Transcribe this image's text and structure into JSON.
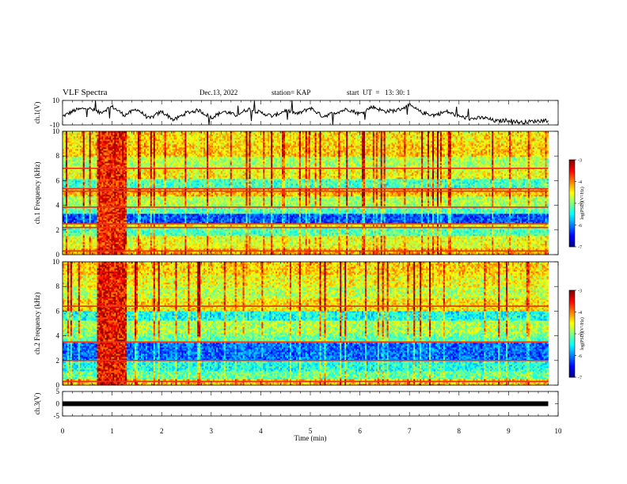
{
  "header": {
    "title": "VLF Spectra",
    "date": "Dec.13, 2022",
    "station": "station= KAP",
    "start": "start  UT  =   13: 30: 1"
  },
  "chart_data": [
    {
      "type": "line",
      "panel": "ch1-waveform",
      "ylabel": "ch.1(V)",
      "ylim": [
        -10,
        10
      ],
      "yticks": [
        "10",
        "-10"
      ],
      "xlim": [
        0,
        10
      ],
      "series": [
        {
          "x": [
            0,
            0.25,
            0.5,
            0.75,
            1.0,
            1.25,
            1.5,
            1.75,
            2.0,
            2.25,
            2.5,
            2.75,
            3.0,
            3.25,
            3.5,
            3.75,
            4.0,
            4.25,
            4.5,
            4.75,
            5.0,
            5.25,
            5.5,
            5.75,
            6.0,
            6.25,
            6.5,
            6.75,
            7.0,
            7.25,
            7.5,
            7.75,
            8.0,
            8.25,
            8.5,
            8.75,
            9.0,
            9.25,
            9.5,
            9.8
          ],
          "y": [
            -3,
            2,
            4,
            0,
            5,
            -2,
            3,
            -5,
            1,
            -6,
            0,
            2,
            -4,
            1,
            -2,
            3,
            0,
            -3,
            2,
            -1,
            4,
            -3,
            0,
            3,
            -1,
            5,
            1,
            2,
            6,
            0,
            -2,
            1,
            -3,
            -5,
            -4,
            -7,
            -6,
            -8,
            -7,
            -6
          ]
        }
      ]
    },
    {
      "type": "heatmap",
      "panel": "ch1-spectrogram",
      "ylabel": "ch.1  Frequency  (kHz)",
      "ylim": [
        0,
        10
      ],
      "yticks": [
        "0",
        "2",
        "4",
        "6",
        "8",
        "10"
      ],
      "xlim": [
        0,
        10
      ],
      "colorbar": {
        "label": "log(PSD)(V²/Hz)",
        "range": [
          -7,
          -3
        ],
        "ticks": [
          "-3",
          "-4",
          "-5",
          "-6",
          "-7"
        ]
      },
      "bands_log_psd": [
        {
          "freq_khz": [
            0,
            0.5
          ],
          "value": -4.3
        },
        {
          "freq_khz": [
            0.5,
            1.6
          ],
          "value": -4.7
        },
        {
          "freq_khz": [
            1.6,
            2.2
          ],
          "value": -5.3
        },
        {
          "freq_khz": [
            2.2,
            2.6
          ],
          "value": -4.6
        },
        {
          "freq_khz": [
            2.6,
            3.3
          ],
          "value": -6.3
        },
        {
          "freq_khz": [
            3.3,
            3.8
          ],
          "value": -5.3
        },
        {
          "freq_khz": [
            3.8,
            4.8
          ],
          "value": -5.0
        },
        {
          "freq_khz": [
            4.8,
            5.4
          ],
          "value": -4.4
        },
        {
          "freq_khz": [
            5.4,
            6.2
          ],
          "value": -5.4
        },
        {
          "freq_khz": [
            6.2,
            7.0
          ],
          "value": -4.7
        },
        {
          "freq_khz": [
            7.0,
            8.0
          ],
          "value": -5.0
        },
        {
          "freq_khz": [
            8.0,
            9.0
          ],
          "value": -4.5
        },
        {
          "freq_khz": [
            9.0,
            10
          ],
          "value": -4.6
        }
      ],
      "lines_khz": [
        0.3,
        2.2,
        2.5,
        3.85,
        5.15,
        5.35,
        7.0
      ],
      "burst": {
        "time_min": [
          0.7,
          1.3
        ],
        "value": -3.6
      }
    },
    {
      "type": "heatmap",
      "panel": "ch2-spectrogram",
      "ylabel": "ch.2  Frequency  (kHz)",
      "ylim": [
        0,
        10
      ],
      "yticks": [
        "0",
        "2",
        "4",
        "6",
        "8",
        "10"
      ],
      "xlim": [
        0,
        10
      ],
      "colorbar": {
        "label": "log(PSD)(V²/Hz)",
        "range": [
          -7,
          -3
        ],
        "ticks": [
          "-3",
          "-4",
          "-5",
          "-6",
          "-7"
        ]
      },
      "bands_log_psd": [
        {
          "freq_khz": [
            0,
            0.5
          ],
          "value": -4.4
        },
        {
          "freq_khz": [
            0.5,
            1.2
          ],
          "value": -5.2
        },
        {
          "freq_khz": [
            1.2,
            2.0
          ],
          "value": -5.5
        },
        {
          "freq_khz": [
            2.0,
            3.4
          ],
          "value": -6.2
        },
        {
          "freq_khz": [
            3.4,
            4.2
          ],
          "value": -5.2
        },
        {
          "freq_khz": [
            4.2,
            5.2
          ],
          "value": -5.0
        },
        {
          "freq_khz": [
            5.2,
            6.0
          ],
          "value": -5.6
        },
        {
          "freq_khz": [
            6.0,
            7.0
          ],
          "value": -4.6
        },
        {
          "freq_khz": [
            7.0,
            8.0
          ],
          "value": -4.9
        },
        {
          "freq_khz": [
            8.0,
            9.0
          ],
          "value": -4.7
        },
        {
          "freq_khz": [
            9.0,
            10
          ],
          "value": -4.5
        }
      ],
      "lines_khz": [
        0.3,
        2.0,
        3.5,
        6.4
      ],
      "burst": {
        "time_min": [
          0.7,
          1.3
        ],
        "value": -3.5
      }
    },
    {
      "type": "line",
      "panel": "ch3-waveform",
      "ylabel": "ch.3(V)",
      "ylim": [
        -5,
        5
      ],
      "yticks": [
        "5",
        "0",
        "-5"
      ],
      "xlim": [
        0,
        10
      ],
      "xlabel": "Time  (min)",
      "xticks": [
        "0",
        "1",
        "2",
        "3",
        "4",
        "5",
        "6",
        "7",
        "8",
        "9",
        "10"
      ],
      "series": [
        {
          "x": [
            0,
            9.8
          ],
          "y": [
            0,
            0
          ]
        }
      ]
    }
  ]
}
